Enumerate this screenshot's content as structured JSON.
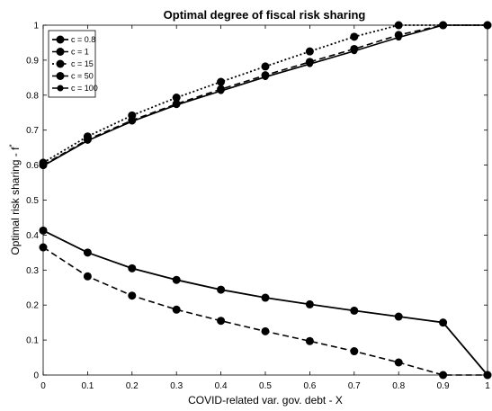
{
  "chart_data": {
    "type": "line",
    "title": "Optimal degree of fiscal risk sharing",
    "xlabel": "COVID-related var. gov. debt - X",
    "ylabel_main": "Optimal risk sharing - f",
    "ylabel_sup": "*",
    "xlim": [
      0,
      1
    ],
    "ylim": [
      0,
      1
    ],
    "xticks": [
      "0",
      "0.1",
      "0.2",
      "0.3",
      "0.4",
      "0.5",
      "0.6",
      "0.7",
      "0.8",
      "0.9",
      "1"
    ],
    "yticks": [
      "0",
      "0.1",
      "0.2",
      "0.3",
      "0.4",
      "0.5",
      "0.6",
      "0.7",
      "0.8",
      "0.9",
      "1"
    ],
    "legend_position": "top-left",
    "grid": false,
    "x": [
      0,
      0.1,
      0.2,
      0.3,
      0.4,
      0.5,
      0.6,
      0.7,
      0.8,
      0.9,
      1
    ],
    "series": [
      {
        "name": "c = 0.8",
        "style": "solid",
        "linewidth": 1.8,
        "marker_size": 4.5,
        "values": [
          0.413,
          0.35,
          0.305,
          0.272,
          0.244,
          0.221,
          0.202,
          0.184,
          0.167,
          0.15,
          0.0
        ]
      },
      {
        "name": "c = 1",
        "style": "dashed",
        "linewidth": 1.6,
        "marker_size": 4.5,
        "values": [
          0.365,
          0.282,
          0.227,
          0.187,
          0.155,
          0.125,
          0.097,
          0.068,
          0.036,
          0.0,
          0.0
        ]
      },
      {
        "name": "c = 15",
        "style": "dotted",
        "linewidth": 1.8,
        "marker_size": 4.5,
        "values": [
          0.607,
          0.682,
          0.742,
          0.793,
          0.838,
          0.882,
          0.925,
          0.967,
          1.0,
          1.0,
          1.0
        ]
      },
      {
        "name": "c = 50",
        "style": "dashed",
        "linewidth": 1.6,
        "marker_size": 4.5,
        "values": [
          0.6,
          0.673,
          0.728,
          0.775,
          0.817,
          0.857,
          0.895,
          0.932,
          0.972,
          1.0,
          1.0
        ]
      },
      {
        "name": "c = 100",
        "style": "solid",
        "linewidth": 1.6,
        "marker_size": 3.5,
        "values": [
          0.598,
          0.67,
          0.725,
          0.772,
          0.812,
          0.852,
          0.889,
          0.926,
          0.965,
          1.0,
          1.0
        ]
      }
    ]
  }
}
